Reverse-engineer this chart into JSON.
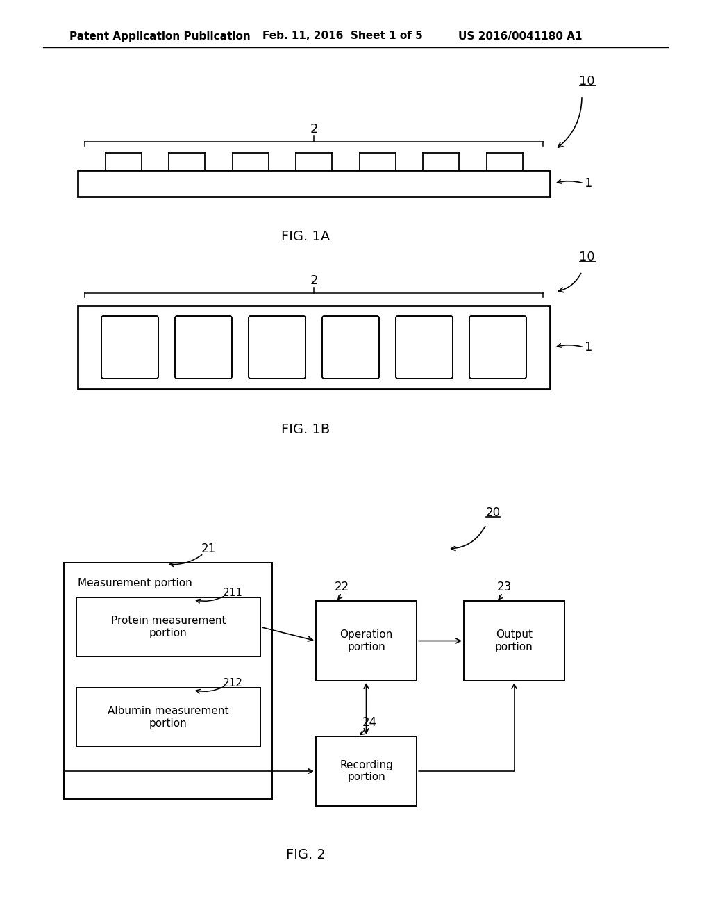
{
  "bg_color": "#ffffff",
  "header_left": "Patent Application Publication",
  "header_mid": "Feb. 11, 2016  Sheet 1 of 5",
  "header_right": "US 2016/0041180 A1",
  "fig1a_label": "FIG. 1A",
  "fig1b_label": "FIG. 1B",
  "fig2_label": "FIG. 2",
  "label_10a": "10",
  "label_1a": "1",
  "label_2a": "2",
  "label_10b": "10",
  "label_1b": "1",
  "label_2b": "2",
  "label_20": "20",
  "label_21": "21",
  "label_22": "22",
  "label_23": "23",
  "label_24": "24",
  "label_211": "211",
  "label_212": "212",
  "box_measurement": "Measurement portion",
  "box_protein": "Protein measurement\nportion",
  "box_albumin": "Albumin measurement\nportion",
  "box_operation": "Operation\nportion",
  "box_output": "Output\nportion",
  "box_recording": "Recording\nportion"
}
